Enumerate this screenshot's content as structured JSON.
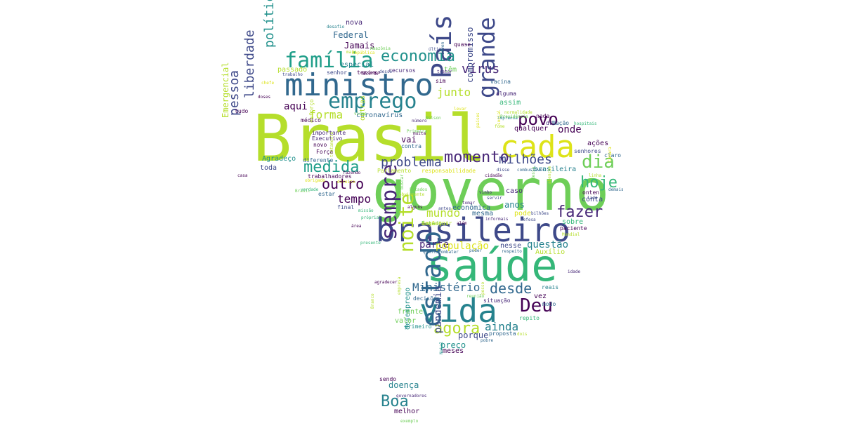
{
  "words": [
    {
      "text": "Brasil",
      "color": "#b5de2b"
    },
    {
      "text": "governo",
      "color": "#6ece58"
    },
    {
      "text": "saúde",
      "color": "#35b779"
    },
    {
      "text": "brasileiro",
      "color": "#3e4989"
    },
    {
      "text": "ministro",
      "color": "#31688e"
    },
    {
      "text": "vida",
      "color": "#26828e"
    },
    {
      "text": "cada",
      "color": "#dde318"
    },
    {
      "text": "emprego",
      "color": "#26828e"
    },
    {
      "text": "família",
      "color": "#1f9e89"
    },
    {
      "text": "País",
      "color": "#3e4989"
    },
    {
      "text": "estado",
      "color": "#31688e"
    },
    {
      "text": "economia",
      "color": "#21918c"
    },
    {
      "text": "povo",
      "color": "#440154"
    },
    {
      "text": "dia",
      "color": "#6ece58"
    },
    {
      "text": "momento",
      "color": "#482878"
    },
    {
      "text": "fazer",
      "color": "#482878"
    },
    {
      "text": "hoje",
      "color": "#35b779"
    },
    {
      "text": "Deu",
      "color": "#440154"
    },
    {
      "text": "medida",
      "color": "#1f9e89"
    },
    {
      "text": "grande",
      "color": "#3e4989"
    },
    {
      "text": "sempre",
      "color": "#482878"
    },
    {
      "text": "noite",
      "color": "#b5de2b"
    },
    {
      "text": "agora",
      "color": "#b5de2b"
    },
    {
      "text": "Boa",
      "color": "#26828e"
    },
    {
      "text": "problema",
      "color": "#3e4989"
    },
    {
      "text": "outro",
      "color": "#440154"
    },
    {
      "text": "desde",
      "color": "#31688e"
    },
    {
      "text": "política",
      "color": "#21918c"
    },
    {
      "text": "liberdade",
      "color": "#3e4989"
    },
    {
      "text": "pessoa",
      "color": "#3e4989"
    },
    {
      "text": "vírus",
      "color": "#482878"
    },
    {
      "text": "junto",
      "color": "#b5de2b"
    },
    {
      "text": "milhões",
      "color": "#3e4989"
    },
    {
      "text": "tempo",
      "color": "#440154"
    },
    {
      "text": "Ministério",
      "color": "#31688e"
    },
    {
      "text": "mundo",
      "color": "#b5de2b"
    },
    {
      "text": "parte",
      "color": "#482878"
    },
    {
      "text": "pandemia",
      "color": "#3e4989"
    },
    {
      "text": "ainda",
      "color": "#26828e"
    },
    {
      "text": "forma",
      "color": "#b5de2b"
    },
    {
      "text": "aqui",
      "color": "#440154"
    },
    {
      "text": "onde",
      "color": "#440154"
    },
    {
      "text": "população",
      "color": "#dde318"
    },
    {
      "text": "questão",
      "color": "#26828e"
    },
    {
      "text": "Federal",
      "color": "#31688e"
    },
    {
      "text": "Jamais",
      "color": "#440154"
    },
    {
      "text": "especial",
      "color": "#26828e"
    },
    {
      "text": "passado",
      "color": "#b5de2b"
    },
    {
      "text": "coronavírus",
      "color": "#31688e"
    },
    {
      "text": "compromisso",
      "color": "#3e4989"
    },
    {
      "text": "outras",
      "color": "#b5de2b"
    },
    {
      "text": "Emergencial",
      "color": "#b5de2b"
    },
    {
      "text": "desemprego",
      "color": "#21918c"
    },
    {
      "text": "doença",
      "color": "#26828e"
    },
    {
      "text": "melhor",
      "color": "#440154"
    },
    {
      "text": "preço",
      "color": "#21918c"
    },
    {
      "text": "porque",
      "color": "#3e4989"
    },
    {
      "text": "meses",
      "color": "#440154"
    },
    {
      "text": "nova",
      "color": "#482878"
    },
    {
      "text": "Agradeço",
      "color": "#21918c"
    },
    {
      "text": "toda",
      "color": "#3e4989"
    },
    {
      "text": "vai",
      "color": "#440154"
    },
    {
      "text": "brasileira",
      "color": "#26828e"
    },
    {
      "text": "ações",
      "color": "#440154"
    },
    {
      "text": "conta",
      "color": "#3e4989"
    },
    {
      "text": "sobre",
      "color": "#35b779"
    },
    {
      "text": "econômica",
      "color": "#31688e"
    },
    {
      "text": "mesma",
      "color": "#31688e"
    },
    {
      "text": "anos",
      "color": "#26828e"
    },
    {
      "text": "nesse",
      "color": "#3e4989"
    },
    {
      "text": "Auxílio",
      "color": "#b5de2b"
    },
    {
      "text": "assim",
      "color": "#35b779"
    },
    {
      "text": "qualquer",
      "color": "#440154"
    },
    {
      "text": "têm",
      "color": "#6ece58"
    },
    {
      "text": "caso",
      "color": "#482878"
    },
    {
      "text": "pode",
      "color": "#dde318"
    },
    {
      "text": "valor",
      "color": "#6ece58"
    },
    {
      "text": "frente",
      "color": "#6ece58"
    },
    {
      "text": "sim",
      "color": "#440154"
    },
    {
      "text": "decisões",
      "color": "#31688e"
    },
    {
      "text": "vez",
      "color": "#440154"
    },
    {
      "text": "contra",
      "color": "#31688e"
    },
    {
      "text": "sendo",
      "color": "#440154"
    },
    {
      "text": "tudo",
      "color": "#440154"
    },
    {
      "text": "estar",
      "color": "#31688e"
    },
    {
      "text": "final",
      "color": "#3e4989"
    },
    {
      "text": "primeiro",
      "color": "#21918c"
    },
    {
      "text": "diferente",
      "color": "#31688e"
    },
    {
      "text": "novo",
      "color": "#440154"
    },
    {
      "text": "Força",
      "color": "#440154"
    },
    {
      "text": "Executivo",
      "color": "#482878"
    },
    {
      "text": "importante",
      "color": "#482878"
    },
    {
      "text": "esforço",
      "color": "#b5de2b"
    },
    {
      "text": "médico",
      "color": "#440154"
    },
    {
      "text": "trabalhadores",
      "color": "#440154"
    },
    {
      "text": "Parlamento",
      "color": "#b5de2b"
    },
    {
      "text": "responsabilidade",
      "color": "#dde318"
    },
    {
      "text": "vacina",
      "color": "#31688e"
    },
    {
      "text": "alguma",
      "color": "#482878"
    },
    {
      "text": "senhor",
      "color": "#3e4989"
    },
    {
      "text": "recursos",
      "color": "#482878"
    },
    {
      "text": "desafio",
      "color": "#26828e"
    },
    {
      "text": "quase",
      "color": "#440154"
    },
    {
      "text": "Amazônia",
      "color": "#6ece58"
    },
    {
      "text": "último",
      "color": "#3e4989"
    },
    {
      "text": "República",
      "color": "#dde318"
    },
    {
      "text": "ter",
      "color": "#440154"
    },
    {
      "text": "dr",
      "color": "#482878"
    },
    {
      "text": "Nação",
      "color": "#31688e"
    },
    {
      "text": "onten",
      "color": "#440154"
    },
    {
      "text": "lado",
      "color": "#3e4989"
    },
    {
      "text": "paciente",
      "color": "#440154"
    },
    {
      "text": "senhores",
      "color": "#3e4989"
    },
    {
      "text": "claro",
      "color": "#31688e"
    },
    {
      "text": "nada",
      "color": "#440154"
    },
    {
      "text": "reais",
      "color": "#26828e"
    },
    {
      "text": "modo",
      "color": "#31688e"
    },
    {
      "text": "repito",
      "color": "#35b779"
    },
    {
      "text": "situação",
      "color": "#482878"
    },
    {
      "text": "proposta",
      "color": "#31688e"
    },
    {
      "text": "dois",
      "color": "#b5de2b"
    },
    {
      "text": "pobre",
      "color": "#31688e"
    },
    {
      "text": "combater",
      "color": "#31688e"
    },
    {
      "text": "quanto",
      "color": "#31688e"
    },
    {
      "text": "respeito",
      "color": "#31688e"
    },
    {
      "text": "além",
      "color": "#440154"
    },
    {
      "text": "Defesa",
      "color": "#3e4989"
    },
    {
      "text": "informais",
      "color": "#482878"
    },
    {
      "text": "alguns",
      "color": "#440154"
    },
    {
      "text": "antes",
      "color": "#3e4989"
    },
    {
      "text": "tomar",
      "color": "#482878"
    },
    {
      "text": "cidadão",
      "color": "#440154"
    },
    {
      "text": "vinho",
      "color": "#482878"
    },
    {
      "text": "servir",
      "color": "#3e4989"
    },
    {
      "text": "Brasil",
      "color": "#6ece58"
    },
    {
      "text": "missão",
      "color": "#35b779"
    },
    {
      "text": "área",
      "color": "#440154"
    },
    {
      "text": "presente",
      "color": "#35b779"
    },
    {
      "text": "própria",
      "color": "#35b779"
    },
    {
      "text": "poder",
      "color": "#31688e"
    },
    {
      "text": "Natal",
      "color": "#21918c"
    },
    {
      "text": "governadores",
      "color": "#482878"
    },
    {
      "text": "exemplo",
      "color": "#6ece58"
    },
    {
      "text": "dessa",
      "color": "#6ece58"
    },
    {
      "text": "imprensa",
      "color": "#26828e"
    },
    {
      "text": "normalidade",
      "color": "#b5de2b"
    },
    {
      "text": "Primeira",
      "color": "#6ece58"
    },
    {
      "text": "muita",
      "color": "#440154"
    },
    {
      "text": "número",
      "color": "#482878"
    },
    {
      "text": "Nelson",
      "color": "#6ece58"
    },
    {
      "text": "desse",
      "color": "#3e4989"
    },
    {
      "text": "acordo",
      "color": "#440154"
    },
    {
      "text": "doses",
      "color": "#440154"
    },
    {
      "text": "trabalho",
      "color": "#3e4989"
    },
    {
      "text": "podemos",
      "color": "#440154"
    },
    {
      "text": "casa",
      "color": "#440154"
    },
    {
      "text": "verdade",
      "color": "#35b779"
    },
    {
      "text": "Branco",
      "color": "#b5de2b"
    },
    {
      "text": "Mundial",
      "color": "#b5de2b"
    },
    {
      "text": "idade",
      "color": "#482878"
    },
    {
      "text": "demais",
      "color": "#31688e"
    },
    {
      "text": "linha",
      "color": "#b5de2b"
    },
    {
      "text": "Câmara",
      "color": "#dde318"
    },
    {
      "text": "abençoe",
      "color": "#b5de2b"
    },
    {
      "text": "buscar",
      "color": "#6ece58"
    },
    {
      "text": "fazendo",
      "color": "#440154"
    },
    {
      "text": "tratar",
      "color": "#482878"
    },
    {
      "text": "devem",
      "color": "#31688e"
    },
    {
      "text": "levar",
      "color": "#dde318"
    },
    {
      "text": "países",
      "color": "#dde318"
    },
    {
      "text": "disse",
      "color": "#3e4989"
    },
    {
      "text": "combustível",
      "color": "#31688e"
    },
    {
      "text": "obrigado",
      "color": "#dde318"
    },
    {
      "text": "direito",
      "color": "#dde318"
    },
    {
      "text": "empresa",
      "color": "#b5de2b"
    },
    {
      "text": "bilhões",
      "color": "#3e4989"
    },
    {
      "text": "agradecer",
      "color": "#440154"
    },
    {
      "text": "posso",
      "color": "#b5de2b"
    },
    {
      "text": "mais",
      "color": "#b5de2b"
    },
    {
      "text": "hospitais",
      "color": "#35b779"
    },
    {
      "text": "reunião",
      "color": "#6ece58"
    },
    {
      "text": "social",
      "color": "#dde318"
    },
    {
      "text": "fome",
      "color": "#b5de2b"
    },
    {
      "text": "vidas",
      "color": "#6ece58"
    },
    {
      "text": "chefe",
      "color": "#dde318"
    },
    {
      "text": "Previdência",
      "color": "#6ece58"
    },
    {
      "text": "Estados",
      "color": "#6ece58"
    },
    {
      "text": "obviamente",
      "color": "#b5de2b"
    },
    {
      "text": "tratamento",
      "color": "#b5de2b"
    },
    {
      "text": "momentos",
      "color": "#b5de2b"
    },
    {
      "text": "órgão",
      "color": "#dde318"
    },
    {
      "text": "Estado",
      "color": "#6ece58"
    },
    {
      "text": "conseguir",
      "color": "#b5de2b"
    }
  ]
}
